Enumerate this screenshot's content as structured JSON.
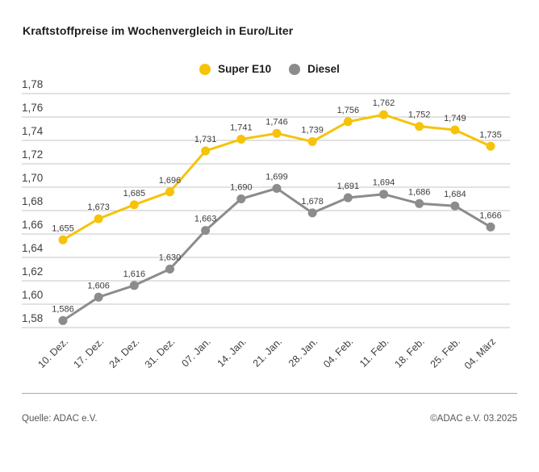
{
  "title": "Kraftstoffpreise im Wochenvergleich in Euro/Liter",
  "legend": {
    "items": [
      {
        "label": "Super E10",
        "color": "#F6C30A"
      },
      {
        "label": "Diesel",
        "color": "#8C8C8C"
      }
    ]
  },
  "footer": {
    "source": "Quelle: ADAC e.V.",
    "copyright": "©ADAC e.V. 03.2025"
  },
  "chart_data": {
    "type": "line",
    "title": "Kraftstoffpreise im Wochenvergleich in Euro/Liter",
    "xlabel": "",
    "ylabel": "Euro/Liter",
    "ylim": [
      1.58,
      1.78
    ],
    "ytick_step": 0.02,
    "ytick_labels": [
      "1,78",
      "1,76",
      "1,74",
      "1,72",
      "1,70",
      "1,68",
      "1,66",
      "1,64",
      "1,62",
      "1,60",
      "1,58"
    ],
    "grid": true,
    "legend_position": "top-center",
    "categories": [
      "10. Dez.",
      "17. Dez.",
      "24. Dez.",
      "31. Dez.",
      "07. Jan.",
      "14. Jan.",
      "21. Jan.",
      "28. Jan.",
      "04. Feb.",
      "11. Feb.",
      "18. Feb.",
      "25. Feb.",
      "04. März"
    ],
    "series": [
      {
        "name": "Super E10",
        "color": "#F6C30A",
        "values": [
          1.655,
          1.673,
          1.685,
          1.696,
          1.731,
          1.741,
          1.746,
          1.739,
          1.756,
          1.762,
          1.752,
          1.749,
          1.735
        ],
        "labels": [
          "1,655",
          "1,673",
          "1,685",
          "1,696",
          "1,731",
          "1,741",
          "1,746",
          "1,739",
          "1,756",
          "1,762",
          "1,752",
          "1,749",
          "1,735"
        ]
      },
      {
        "name": "Diesel",
        "color": "#8C8C8C",
        "values": [
          1.586,
          1.606,
          1.616,
          1.63,
          1.663,
          1.69,
          1.699,
          1.678,
          1.691,
          1.694,
          1.686,
          1.684,
          1.666
        ],
        "labels": [
          "1,586",
          "1,606",
          "1,616",
          "1,630",
          "1,663",
          "1,690",
          "1,699",
          "1,678",
          "1,691",
          "1,694",
          "1,686",
          "1,684",
          "1,666"
        ]
      }
    ]
  }
}
